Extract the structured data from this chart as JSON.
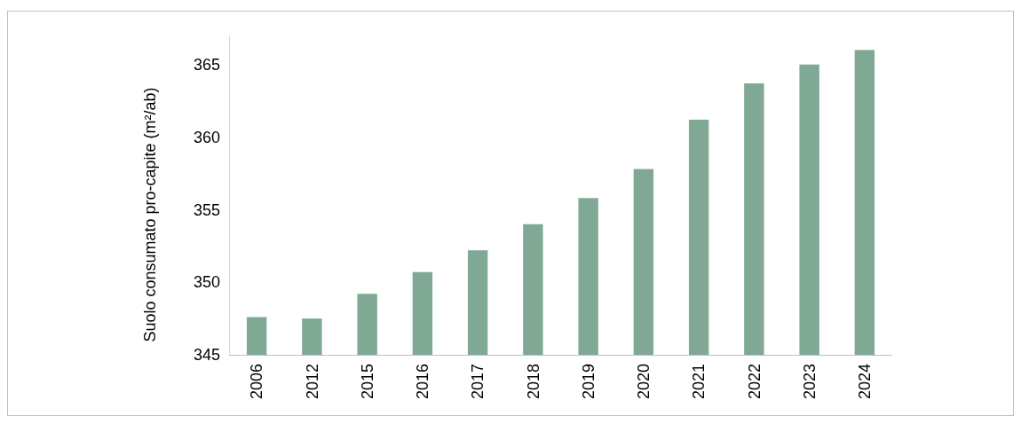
{
  "chart_data": {
    "type": "bar",
    "ylabel": "Suolo consumato pro-capite (m²/ab)",
    "categories": [
      "2006",
      "2012",
      "2015",
      "2016",
      "2017",
      "2018",
      "2019",
      "2020",
      "2021",
      "2022",
      "2023",
      "2024"
    ],
    "values": [
      347.6,
      347.5,
      349.2,
      350.7,
      352.2,
      354.0,
      355.8,
      357.8,
      361.2,
      363.7,
      365.0,
      366.0
    ],
    "color": "#80a995",
    "ylim": [
      345,
      367
    ],
    "yticks": [
      345,
      350,
      355,
      360,
      365
    ],
    "grid": false
  }
}
